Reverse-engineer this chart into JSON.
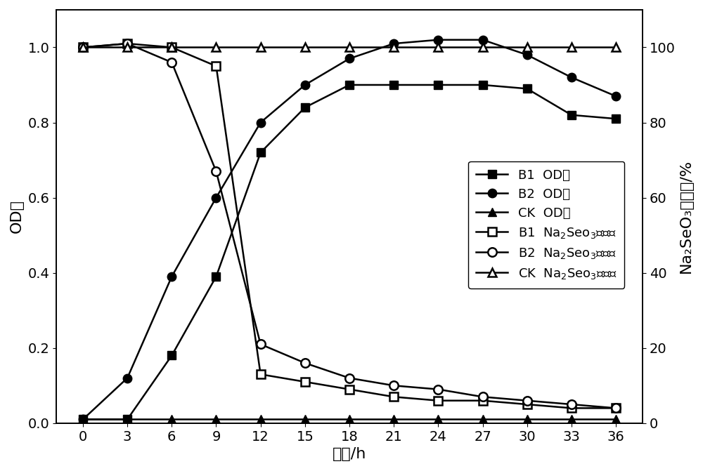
{
  "time": [
    0,
    3,
    6,
    9,
    12,
    15,
    18,
    21,
    24,
    27,
    30,
    33,
    36
  ],
  "B1_OD": [
    0.01,
    0.01,
    0.18,
    0.39,
    0.72,
    0.84,
    0.9,
    0.9,
    0.9,
    0.9,
    0.89,
    0.82,
    0.81
  ],
  "B2_OD": [
    0.01,
    0.12,
    0.39,
    0.6,
    0.8,
    0.9,
    0.97,
    1.01,
    1.02,
    1.02,
    0.98,
    0.92,
    0.87
  ],
  "CK_OD": [
    0.01,
    0.01,
    0.01,
    0.01,
    0.01,
    0.01,
    0.01,
    0.01,
    0.01,
    0.01,
    0.01,
    0.01,
    0.01
  ],
  "B1_Se": [
    100,
    101,
    100,
    95,
    13,
    11,
    9,
    7,
    6,
    6,
    5,
    4,
    4
  ],
  "B2_Se": [
    100,
    101,
    96,
    67,
    21,
    16,
    12,
    10,
    9,
    7,
    6,
    5,
    4
  ],
  "CK_Se": [
    100,
    100,
    100,
    100,
    100,
    100,
    100,
    100,
    100,
    100,
    100,
    100,
    100
  ],
  "xlabel": "时间/h",
  "ylabel_left": "OD値",
  "ylabel_right": "Na₂SeO₃剩余率/%",
  "left_ylim": [
    0.0,
    1.1
  ],
  "right_ylim": [
    0,
    110
  ],
  "left_yticks": [
    0.0,
    0.2,
    0.4,
    0.6,
    0.8,
    1.0
  ],
  "right_yticks": [
    0,
    20,
    40,
    60,
    80,
    100
  ],
  "line_color": "#000000",
  "bg_color": "#ffffff",
  "fontsize_label": 16,
  "fontsize_tick": 14,
  "fontsize_legend": 13,
  "marker_size": 9,
  "linewidth": 1.8
}
